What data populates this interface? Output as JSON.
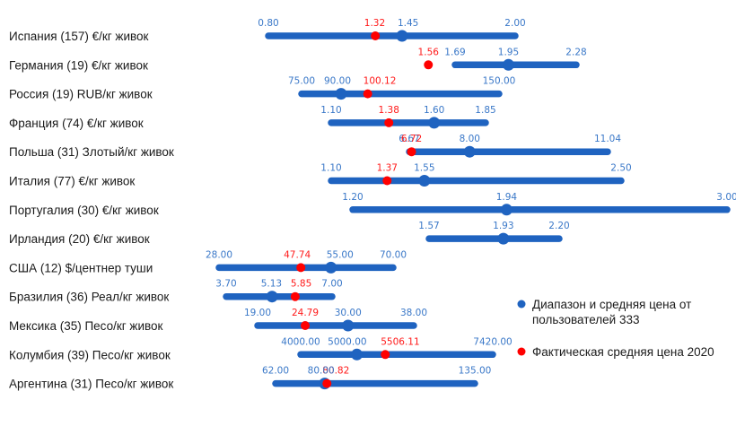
{
  "chart_data": {
    "type": "range",
    "colors": {
      "range": "#1f63c0",
      "actual": "#ff0000",
      "label_blue": "#3a78c8",
      "label_red": "#ff1a1a"
    },
    "legend": {
      "range_label_line1": "Диапазон и средняя цена от",
      "range_label_line2": "пользователей 333",
      "actual_label": "Фактическая средняя цена 2020"
    },
    "rows": [
      {
        "label": "Испания (157) €/кг живок",
        "min": 0.8,
        "avg": 1.45,
        "max": 2.0,
        "actual": 1.32,
        "min_label": "0.80",
        "avg_label": "1.45",
        "max_label": "2.00",
        "actual_label": "1.32"
      },
      {
        "label": "Германия (19) €/кг живок",
        "min": 1.69,
        "avg": 1.95,
        "max": 2.28,
        "actual": 1.56,
        "min_label": "1.69",
        "avg_label": "1.95",
        "max_label": "2.28",
        "actual_label": "1.56"
      },
      {
        "label": "Россия (19) RUB/кг живок",
        "min": 75.0,
        "avg": 90.0,
        "max": 150.0,
        "actual": 100.12,
        "min_label": "75.00",
        "avg_label": "90.00",
        "max_label": "150.00",
        "actual_label": "100.12"
      },
      {
        "label": "Франция (74) €/кг живок",
        "min": 1.1,
        "avg": 1.6,
        "max": 1.85,
        "actual": 1.38,
        "min_label": "1.10",
        "avg_label": "1.60",
        "max_label": "1.85",
        "actual_label": "1.38"
      },
      {
        "label": "Польша (31) Злотый/кг живок",
        "min": 6.67,
        "avg": 8.0,
        "max": 11.04,
        "actual": 6.72,
        "min_label": "6.67",
        "avg_label": "8.00",
        "max_label": "11.04",
        "actual_label": "6.72"
      },
      {
        "label": "Италия (77) €/кг живок",
        "min": 1.1,
        "avg": 1.55,
        "max": 2.5,
        "actual": 1.37,
        "min_label": "1.10",
        "avg_label": "1.55",
        "max_label": "2.50",
        "actual_label": "1.37"
      },
      {
        "label": "Португалия (30) €/кг живок",
        "min": 1.2,
        "avg": 1.94,
        "max": 3.0,
        "actual": null,
        "min_label": "1.20",
        "avg_label": "1.94",
        "max_label": "3.00",
        "actual_label": ""
      },
      {
        "label": "Ирландия (20) €/кг живок",
        "min": 1.57,
        "avg": 1.93,
        "max": 2.2,
        "actual": null,
        "min_label": "1.57",
        "avg_label": "1.93",
        "max_label": "2.20",
        "actual_label": ""
      },
      {
        "label": "США (12) $/центнер туши",
        "min": 28.0,
        "avg": 55.0,
        "max": 70.0,
        "actual": 47.74,
        "min_label": "28.00",
        "avg_label": "55.00",
        "max_label": "70.00",
        "actual_label": "47.74"
      },
      {
        "label": "Бразилия (36) Реал/кг живок",
        "min": 3.7,
        "avg": 5.13,
        "max": 7.0,
        "actual": 5.85,
        "min_label": "3.70",
        "avg_label": "5.13",
        "max_label": "7.00",
        "actual_label": "5.85"
      },
      {
        "label": "Мексика (35) Песо/кг живок",
        "min": 19.0,
        "avg": 30.0,
        "max": 38.0,
        "actual": 24.79,
        "min_label": "19.00",
        "avg_label": "30.00",
        "max_label": "38.00",
        "actual_label": "24.79"
      },
      {
        "label": "Колумбия (39) Песо/кг живок",
        "min": 4000.0,
        "avg": 5000.0,
        "max": 7420.0,
        "actual": 5506.11,
        "min_label": "4000.00",
        "avg_label": "5000.00",
        "max_label": "7420.00",
        "actual_label": "5506.11"
      },
      {
        "label": "Аргентина (31) Песо/кг живок",
        "min": 62.0,
        "avg": 80.0,
        "max": 135.0,
        "actual": 80.82,
        "min_label": "62.00",
        "avg_label": "80.00",
        "max_label": "135.00",
        "actual_label": "80.82"
      }
    ]
  }
}
